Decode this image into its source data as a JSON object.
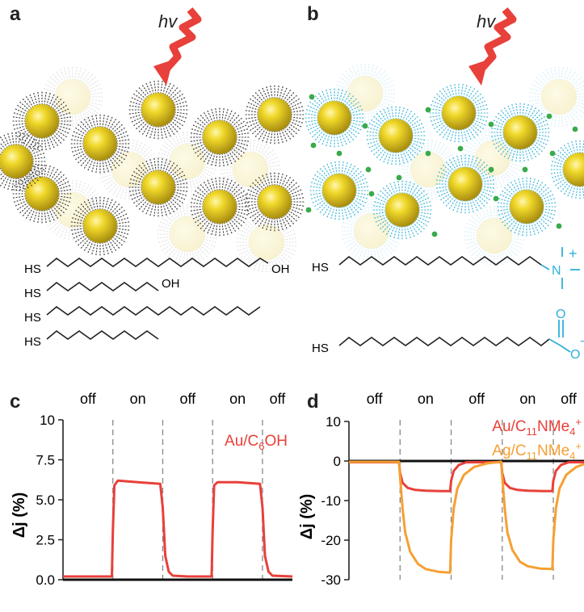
{
  "panels": {
    "a": {
      "letter": "a",
      "hv": "hv"
    },
    "b": {
      "letter": "b",
      "hv": "hv"
    },
    "c": {
      "letter": "c"
    },
    "d": {
      "letter": "d"
    }
  },
  "structures": {
    "a": {
      "head": "HS",
      "rows": [
        {
          "tail": "OH"
        },
        {
          "tail": "OH"
        },
        {
          "tail": ""
        },
        {
          "tail": ""
        }
      ]
    },
    "b": {
      "head": "HS",
      "ammonium": {
        "N": "N",
        "charge": "+"
      },
      "carboxylate": {
        "O1": "O",
        "O2": "O",
        "charge": "−"
      }
    }
  },
  "colors": {
    "red": "#e8403a",
    "orange": "#f5a033",
    "gold": "#e0c020",
    "cyan": "#2fb0d8",
    "green": "#3aaa4a"
  },
  "chart_data": [
    {
      "type": "line",
      "panel": "c",
      "ylabel": "Δj (%)",
      "ylim": [
        0,
        10
      ],
      "yticks": [
        "10",
        "7.5",
        "5.0",
        "2.5",
        "0.0"
      ],
      "states": [
        "off",
        "on",
        "off",
        "on",
        "off"
      ],
      "series": [
        {
          "name": "Au/C6OH",
          "x": [
            0,
            0.98,
            1.0,
            1.03,
            1.1,
            1.5,
            1.95,
            2.0,
            2.05,
            2.12,
            2.2,
            2.5,
            2.98,
            3.0,
            3.03,
            3.1,
            3.5,
            3.95,
            4.0,
            4.05,
            4.12,
            4.2,
            4.6
          ],
          "y": [
            0.2,
            0.2,
            3.0,
            5.9,
            6.2,
            6.1,
            6.0,
            4.5,
            1.5,
            0.5,
            0.25,
            0.2,
            0.2,
            3.0,
            5.9,
            6.1,
            6.1,
            6.0,
            4.5,
            1.5,
            0.5,
            0.25,
            0.2
          ]
        }
      ]
    },
    {
      "type": "line",
      "panel": "d",
      "ylabel": "Δj (%)",
      "ylim": [
        -30,
        10
      ],
      "yticks": [
        "10",
        "0",
        "-10",
        "-20",
        "-30"
      ],
      "states": [
        "off",
        "on",
        "off",
        "on",
        "off"
      ],
      "series": [
        {
          "name": "Au/C11NMe4+",
          "x": [
            0,
            0.98,
            1.0,
            1.05,
            1.15,
            1.3,
            1.5,
            1.8,
            1.98,
            2.0,
            2.05,
            2.15,
            2.3,
            2.98,
            3.0,
            3.05,
            3.15,
            3.3,
            3.5,
            3.8,
            3.98,
            4.0,
            4.05,
            4.15,
            4.3,
            4.6
          ],
          "y": [
            -0.3,
            -0.3,
            -3,
            -5.5,
            -6.8,
            -7.3,
            -7.5,
            -7.6,
            -7.6,
            -5,
            -2.5,
            -1,
            -0.3,
            -0.3,
            -3,
            -5.5,
            -6.8,
            -7.3,
            -7.5,
            -7.6,
            -7.6,
            -5,
            -2.5,
            -1,
            -0.3,
            -0.3
          ]
        },
        {
          "name": "Ag/C11NMe4+",
          "x": [
            0,
            0.98,
            1.0,
            1.05,
            1.1,
            1.2,
            1.35,
            1.5,
            1.75,
            1.98,
            2.0,
            2.05,
            2.12,
            2.25,
            2.45,
            2.7,
            2.98,
            3.0,
            3.05,
            3.1,
            3.2,
            3.35,
            3.5,
            3.75,
            3.98,
            4.0,
            4.05,
            4.12,
            4.25,
            4.45,
            4.6
          ],
          "y": [
            -0.2,
            -0.2,
            -4,
            -12,
            -18,
            -23,
            -26,
            -27.3,
            -28,
            -28.2,
            -20,
            -12,
            -7,
            -3.5,
            -1.5,
            -0.6,
            -0.2,
            -4,
            -12,
            -18,
            -22.5,
            -25.5,
            -26.6,
            -27.2,
            -27.3,
            -20,
            -12,
            -7,
            -3.5,
            -1.5,
            -0.8
          ]
        }
      ]
    }
  ]
}
